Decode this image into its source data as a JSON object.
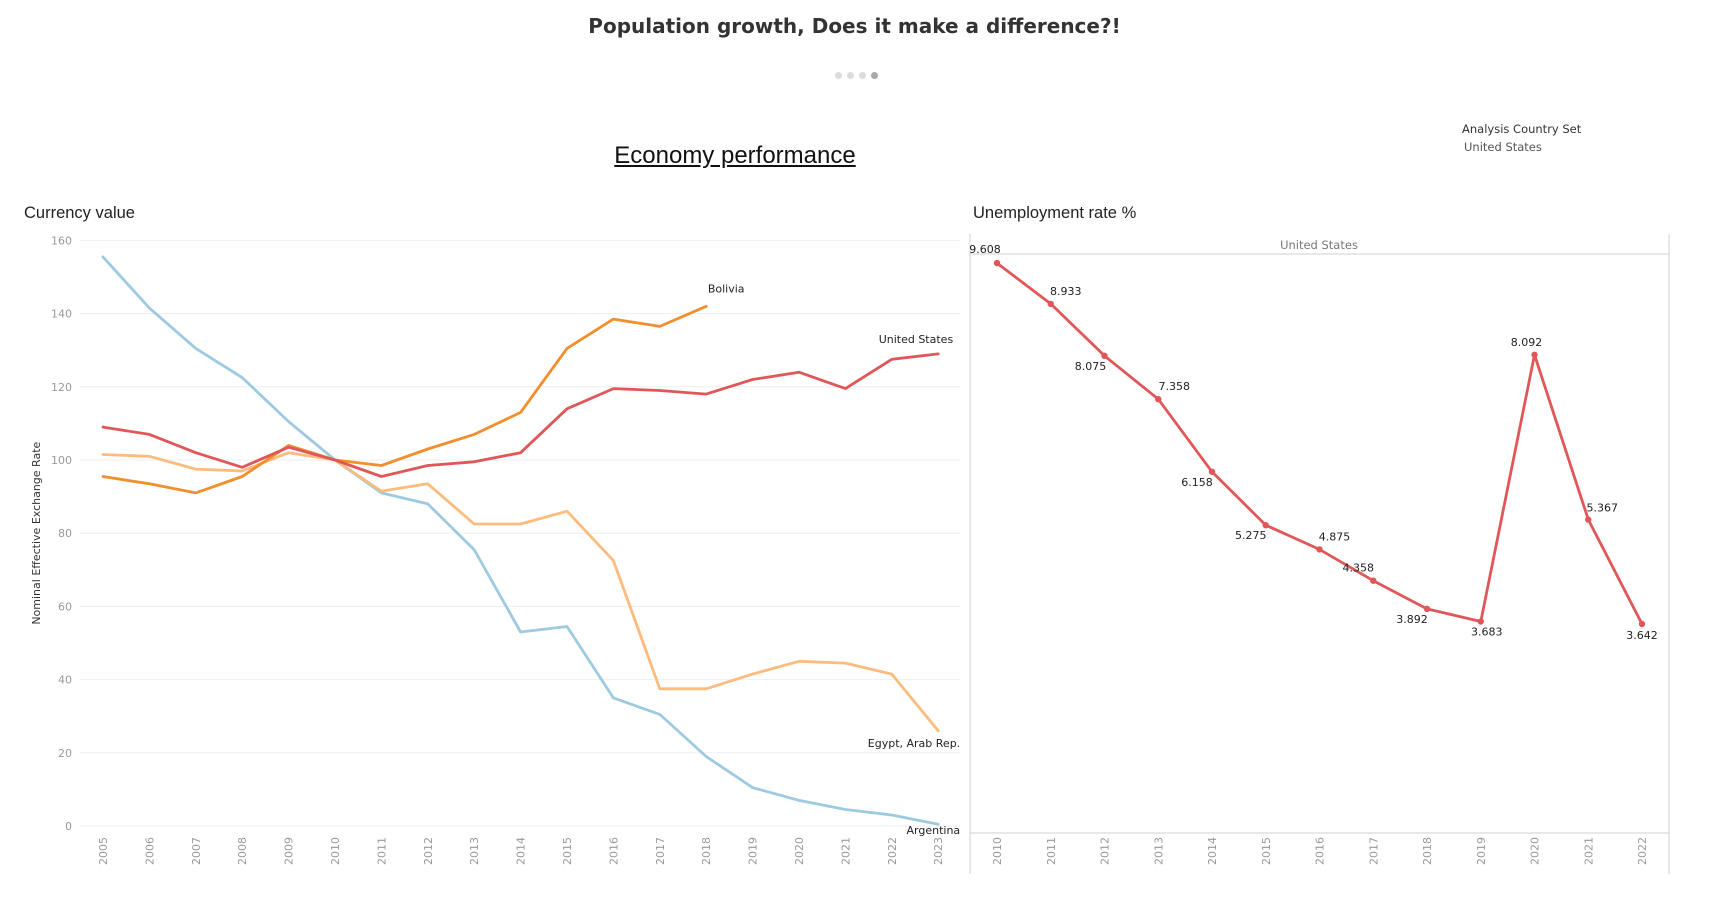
{
  "header": {
    "title": "Population growth, Does it make a difference?!",
    "dots_count": 4,
    "active_dot": 3
  },
  "section_title": "Economy performance",
  "filter": {
    "title": "Analysis Country Set",
    "value": "United States"
  },
  "chart_data": [
    {
      "type": "line",
      "title": "Currency value",
      "ylabel": "Nominal Effective Exchange Rate",
      "xlabel": "",
      "ylim": [
        0,
        160
      ],
      "yticks": [
        0,
        20,
        40,
        60,
        80,
        100,
        120,
        140,
        160
      ],
      "x": [
        "2005",
        "2006",
        "2007",
        "2008",
        "2009",
        "2010",
        "2011",
        "2012",
        "2013",
        "2014",
        "2015",
        "2016",
        "2017",
        "2018",
        "2019",
        "2020",
        "2021",
        "2022",
        "2023"
      ],
      "grid": "horizontal",
      "series": [
        {
          "name": "Argentina",
          "color": "#9ecae1",
          "values": [
            155.5,
            141.5,
            130.5,
            122.5,
            110.5,
            100,
            91,
            88,
            75.5,
            53,
            54.5,
            35,
            30.5,
            19,
            10.5,
            7,
            4.5,
            3,
            0.5
          ]
        },
        {
          "name": "Egypt, Arab Rep.",
          "color": "#fdbb7d",
          "values": [
            101.5,
            101,
            97.5,
            97,
            102,
            100,
            91.5,
            93.5,
            82.5,
            82.5,
            86,
            72.5,
            37.5,
            37.5,
            41.5,
            45,
            44.5,
            41.5,
            26
          ]
        },
        {
          "name": "Bolivia",
          "color": "#f28e2b",
          "values": [
            95.5,
            93.5,
            91,
            95.5,
            104,
            100,
            98.5,
            103,
            107,
            113,
            130.5,
            138.5,
            136.5,
            142,
            null,
            null,
            null,
            null,
            null
          ]
        },
        {
          "name": "United States",
          "color": "#e15759",
          "values": [
            109,
            107,
            102,
            98,
            103.5,
            100,
            95.5,
            98.5,
            99.5,
            102,
            114,
            119.5,
            119,
            118,
            122,
            124,
            119.5,
            127.5,
            129
          ]
        }
      ]
    },
    {
      "type": "line",
      "title": "Unemployment rate %",
      "facet": "United States",
      "x": [
        "2010",
        "2011",
        "2012",
        "2013",
        "2014",
        "2015",
        "2016",
        "2017",
        "2018",
        "2019",
        "2020",
        "2021",
        "2022"
      ],
      "series": [
        {
          "name": "United States",
          "color": "#e15759",
          "values": [
            9.608,
            8.933,
            8.075,
            7.358,
            6.158,
            5.275,
            4.875,
            4.358,
            3.892,
            3.683,
            8.092,
            5.367,
            3.642
          ]
        }
      ],
      "grid": "none"
    }
  ]
}
